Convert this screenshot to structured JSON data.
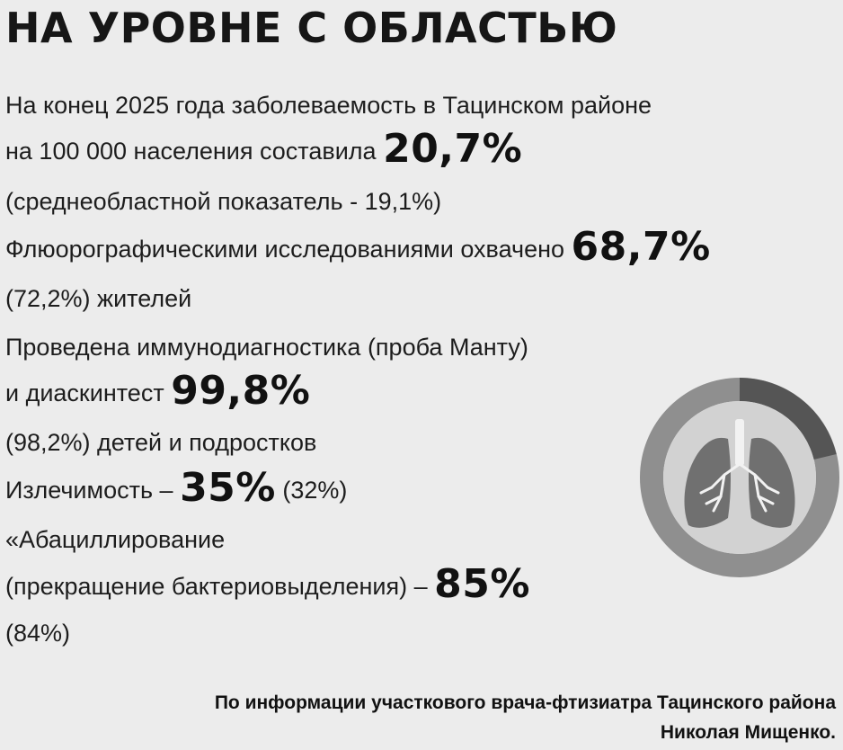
{
  "title": "НА УРОВНЕ С ОБЛАСТЬЮ",
  "stats": {
    "incidence_line1": "На конец 2025 года заболеваемость в Тацинском районе",
    "incidence_line2": "на 100 000 населения составила",
    "incidence_value": "20,7%",
    "incidence_regional": "(среднеобластной показатель - 19,1%)",
    "fluoro_text": "Флюорографическими исследованиями охвачено",
    "fluoro_value": "68,7%",
    "fluoro_prev": "(72,2%) жителей",
    "immuno_line1": "Проведена иммунодиагностика (проба Манту)",
    "immuno_line2": "и диаскинтест",
    "immuno_value": "99,8%",
    "immuno_prev": "(98,2%) детей и подростков",
    "cure_text": "Излечимость –",
    "cure_value": "35%",
    "cure_prev": "(32%)",
    "abac_line1": "«Абациллирование",
    "abac_line2": "(прекращение бактериовыделения) –",
    "abac_value": "85%",
    "abac_prev": "(84%)"
  },
  "source": {
    "line1": "По информации участкового врача-фтизиатра Тацинского района",
    "line2": "Николая Мищенко."
  },
  "icon": "lungs-icon",
  "colors": {
    "background": "#ececec",
    "ring_light": "#8f8f8f",
    "ring_dark": "#555555",
    "disc": "#d2d2d2",
    "lung": "#707070"
  }
}
